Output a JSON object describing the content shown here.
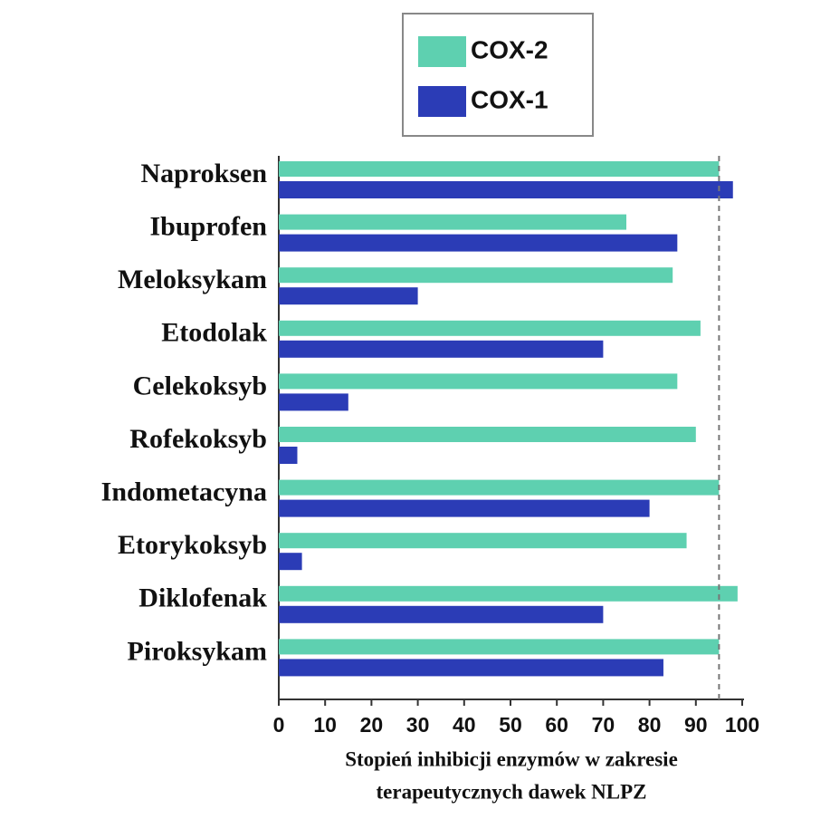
{
  "chart_data": {
    "type": "hbar",
    "categories": [
      "Naproksen",
      "Ibuprofen",
      "Meloksykam",
      "Etodolak",
      "Celekoksyb",
      "Rofekoksyb",
      "Indometacyna",
      "Etorykoksyb",
      "Diklofenak",
      "Piroksykam"
    ],
    "series": [
      {
        "name": "COX-2",
        "color": "#5ed0b0",
        "values": [
          95,
          75,
          85,
          91,
          86,
          90,
          95,
          88,
          99,
          95
        ]
      },
      {
        "name": "COX-1",
        "color": "#2b3cb6",
        "values": [
          98,
          86,
          30,
          70,
          15,
          4,
          80,
          5,
          70,
          83
        ]
      }
    ],
    "xlim": [
      0,
      100
    ],
    "xticks": [
      0,
      10,
      20,
      30,
      40,
      50,
      60,
      70,
      80,
      90,
      100
    ],
    "xlabel": [
      "Stopień inhibicji enzymów w zakresie",
      "terapeutycznych dawek NLPZ"
    ],
    "reference_line": 95
  }
}
